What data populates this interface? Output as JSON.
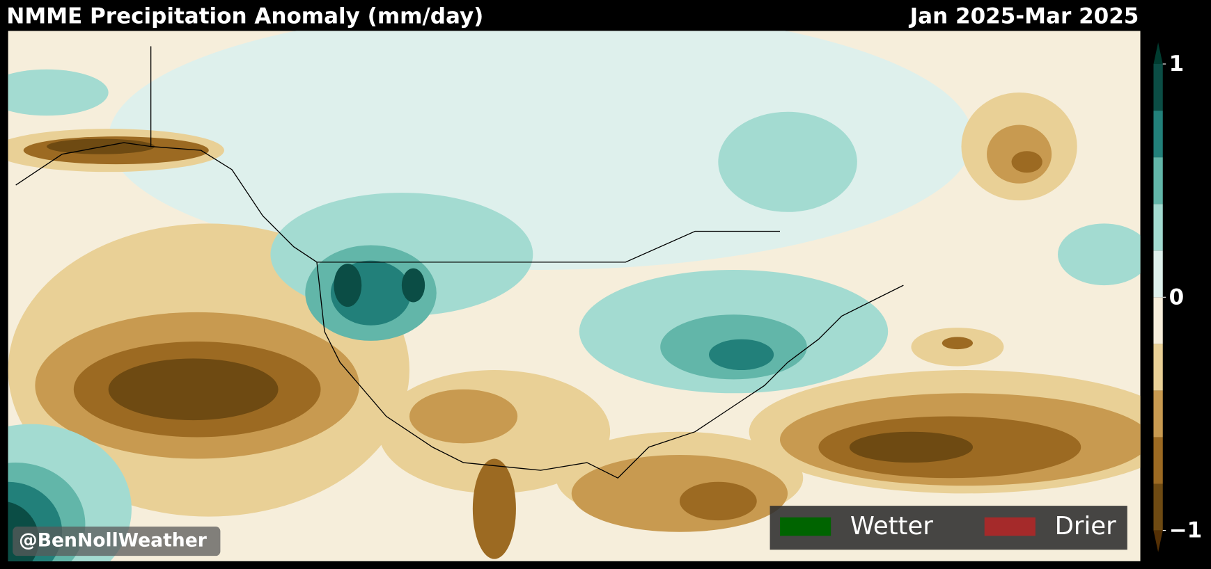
{
  "header": {
    "title": "NMME Precipitation Anomaly (mm/day)",
    "period": "Jan 2025-Mar 2025"
  },
  "colorbar": {
    "levels": [
      -1,
      -0.8,
      -0.6,
      -0.4,
      -0.2,
      0,
      0.2,
      0.4,
      0.6,
      0.8,
      1
    ],
    "colors": [
      "#6e4a12",
      "#9c6a22",
      "#c89a50",
      "#e9d096",
      "#f6eedb",
      "#def0ec",
      "#a3dbd1",
      "#62b6a9",
      "#22807a",
      "#0b4d45"
    ],
    "extend_colors": [
      "#543005",
      "#003c30"
    ],
    "ticks": [
      {
        "value": 1,
        "label": "1"
      },
      {
        "value": 0,
        "label": "0"
      },
      {
        "value": -1,
        "label": "−1"
      }
    ]
  },
  "legend": [
    {
      "name": "Wetter",
      "color": "#006400"
    },
    {
      "name": "Drier",
      "color": "#a52a2a"
    }
  ],
  "watermark": "@BenNollWeather"
}
